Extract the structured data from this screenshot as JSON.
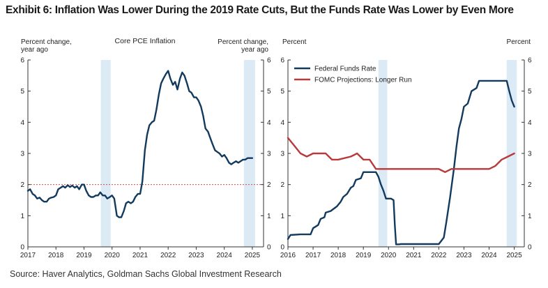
{
  "exhibit": {
    "title": "Exhibit 6: Inflation Was Lower During the 2019 Rate Cuts, But the Funds Rate Was Lower by Even More",
    "source": "Source: Haver Analytics, Goldman Sachs Global Investment Research"
  },
  "colors": {
    "navy": "#123a5e",
    "red": "#b83a3a",
    "shade": "#dceaf6",
    "reference_line": "#b83a3a"
  },
  "chart_data": [
    {
      "type": "line",
      "title": "Core PCE Inflation",
      "ylabel_left": "Percent change,\nyear ago",
      "ylabel_right": "Percent change,\nyear ago",
      "xlim": [
        2017,
        2025.4
      ],
      "ylim": [
        0,
        6
      ],
      "xticks": [
        "2017",
        "2018",
        "2019",
        "2020",
        "2021",
        "2022",
        "2023",
        "2024",
        "2025"
      ],
      "yticks": [
        "0",
        "1",
        "2",
        "3",
        "4",
        "5",
        "6"
      ],
      "shaded_periods": [
        [
          2019.6,
          2019.95
        ],
        [
          2024.7,
          2025.1
        ]
      ],
      "reference_line": {
        "y": 2,
        "style": "dashed"
      },
      "series": [
        {
          "name": "",
          "color": "#123a5e",
          "x": [
            2017.0,
            2017.08,
            2017.17,
            2017.25,
            2017.33,
            2017.42,
            2017.5,
            2017.58,
            2017.67,
            2017.75,
            2017.83,
            2017.92,
            2018.0,
            2018.08,
            2018.17,
            2018.25,
            2018.33,
            2018.42,
            2018.5,
            2018.58,
            2018.67,
            2018.75,
            2018.83,
            2018.92,
            2019.0,
            2019.08,
            2019.17,
            2019.25,
            2019.33,
            2019.42,
            2019.5,
            2019.58,
            2019.67,
            2019.75,
            2019.83,
            2019.92,
            2020.0,
            2020.08,
            2020.17,
            2020.25,
            2020.33,
            2020.42,
            2020.5,
            2020.58,
            2020.67,
            2020.75,
            2020.83,
            2020.92,
            2021.0,
            2021.08,
            2021.17,
            2021.25,
            2021.33,
            2021.42,
            2021.5,
            2021.58,
            2021.67,
            2021.75,
            2021.83,
            2021.92,
            2022.0,
            2022.08,
            2022.17,
            2022.25,
            2022.33,
            2022.42,
            2022.5,
            2022.58,
            2022.67,
            2022.75,
            2022.83,
            2022.92,
            2023.0,
            2023.08,
            2023.17,
            2023.25,
            2023.33,
            2023.42,
            2023.5,
            2023.58,
            2023.67,
            2023.75,
            2023.83,
            2023.92,
            2024.0,
            2024.08,
            2024.17,
            2024.25,
            2024.33,
            2024.42,
            2024.5,
            2024.58,
            2024.67,
            2024.75,
            2024.83,
            2024.92,
            2025.0
          ],
          "y": [
            1.8,
            1.85,
            1.7,
            1.65,
            1.55,
            1.58,
            1.5,
            1.45,
            1.45,
            1.55,
            1.58,
            1.6,
            1.65,
            1.85,
            1.9,
            1.95,
            1.9,
            1.98,
            1.92,
            1.97,
            1.9,
            1.95,
            1.85,
            2.0,
            2.0,
            1.8,
            1.65,
            1.6,
            1.6,
            1.65,
            1.65,
            1.75,
            1.65,
            1.65,
            1.55,
            1.6,
            1.65,
            1.55,
            1.0,
            0.95,
            0.95,
            1.15,
            1.4,
            1.45,
            1.4,
            1.45,
            1.6,
            1.7,
            1.7,
            2.1,
            3.1,
            3.6,
            3.9,
            4.0,
            4.05,
            4.4,
            4.9,
            5.25,
            5.4,
            5.55,
            5.65,
            5.4,
            5.2,
            5.3,
            5.05,
            5.4,
            5.6,
            5.5,
            5.25,
            5.0,
            4.95,
            4.8,
            4.8,
            4.7,
            4.5,
            4.2,
            3.8,
            3.7,
            3.5,
            3.3,
            3.1,
            3.05,
            3.0,
            2.9,
            2.95,
            2.85,
            2.7,
            2.65,
            2.7,
            2.75,
            2.7,
            2.75,
            2.8,
            2.8,
            2.85,
            2.85,
            2.85
          ]
        }
      ]
    },
    {
      "type": "line",
      "title": "",
      "ylabel_left": "Percent",
      "ylabel_right": "Percent",
      "xlim": [
        2016,
        2025.4
      ],
      "ylim": [
        0,
        6
      ],
      "xticks": [
        "2016",
        "2017",
        "2018",
        "2019",
        "2020",
        "2021",
        "2022",
        "2023",
        "2024",
        "2025"
      ],
      "yticks": [
        "0",
        "1",
        "2",
        "3",
        "4",
        "5",
        "6"
      ],
      "shaded_periods": [
        [
          2019.6,
          2019.95
        ],
        [
          2024.7,
          2025.1
        ]
      ],
      "legend": {
        "position": "top-left"
      },
      "series": [
        {
          "name": "Federal Funds Rate",
          "color": "#123a5e",
          "x": [
            2016.0,
            2016.1,
            2016.5,
            2016.9,
            2017.0,
            2017.2,
            2017.3,
            2017.45,
            2017.5,
            2017.7,
            2017.95,
            2018.1,
            2018.2,
            2018.35,
            2018.5,
            2018.6,
            2018.7,
            2018.9,
            2019.0,
            2019.3,
            2019.5,
            2019.6,
            2019.7,
            2019.8,
            2019.9,
            2020.1,
            2020.2,
            2020.25,
            2020.3,
            2020.4,
            2020.5,
            2021.0,
            2021.5,
            2022.0,
            2022.2,
            2022.3,
            2022.45,
            2022.6,
            2022.7,
            2022.8,
            2022.9,
            2023.0,
            2023.15,
            2023.3,
            2023.5,
            2023.6,
            2024.0,
            2024.5,
            2024.7,
            2024.8,
            2024.9,
            2025.0
          ],
          "y": [
            0.25,
            0.38,
            0.4,
            0.4,
            0.6,
            0.7,
            0.9,
            0.95,
            1.1,
            1.15,
            1.3,
            1.45,
            1.6,
            1.7,
            1.9,
            1.95,
            2.15,
            2.2,
            2.4,
            2.4,
            2.4,
            2.25,
            2.0,
            1.8,
            1.55,
            1.55,
            1.5,
            0.7,
            0.08,
            0.08,
            0.09,
            0.09,
            0.09,
            0.09,
            0.3,
            0.8,
            1.6,
            2.5,
            3.2,
            3.8,
            4.1,
            4.5,
            4.6,
            5.0,
            5.1,
            5.33,
            5.33,
            5.33,
            5.33,
            5.0,
            4.7,
            4.5
          ]
        },
        {
          "name": "FOMC Projections: Longer Run",
          "color": "#b83a3a",
          "x": [
            2016.0,
            2016.25,
            2016.5,
            2016.75,
            2017.0,
            2017.5,
            2017.75,
            2018.0,
            2018.5,
            2018.75,
            2019.0,
            2019.25,
            2019.5,
            2019.75,
            2020.0,
            2022.0,
            2022.25,
            2022.5,
            2022.75,
            2024.0,
            2024.25,
            2024.5,
            2024.75,
            2025.0
          ],
          "y": [
            3.5,
            3.25,
            3.0,
            2.9,
            3.0,
            3.0,
            2.8,
            2.8,
            2.9,
            3.0,
            2.8,
            2.8,
            2.5,
            2.5,
            2.5,
            2.5,
            2.4,
            2.5,
            2.5,
            2.5,
            2.6,
            2.8,
            2.9,
            3.0
          ]
        }
      ]
    }
  ]
}
